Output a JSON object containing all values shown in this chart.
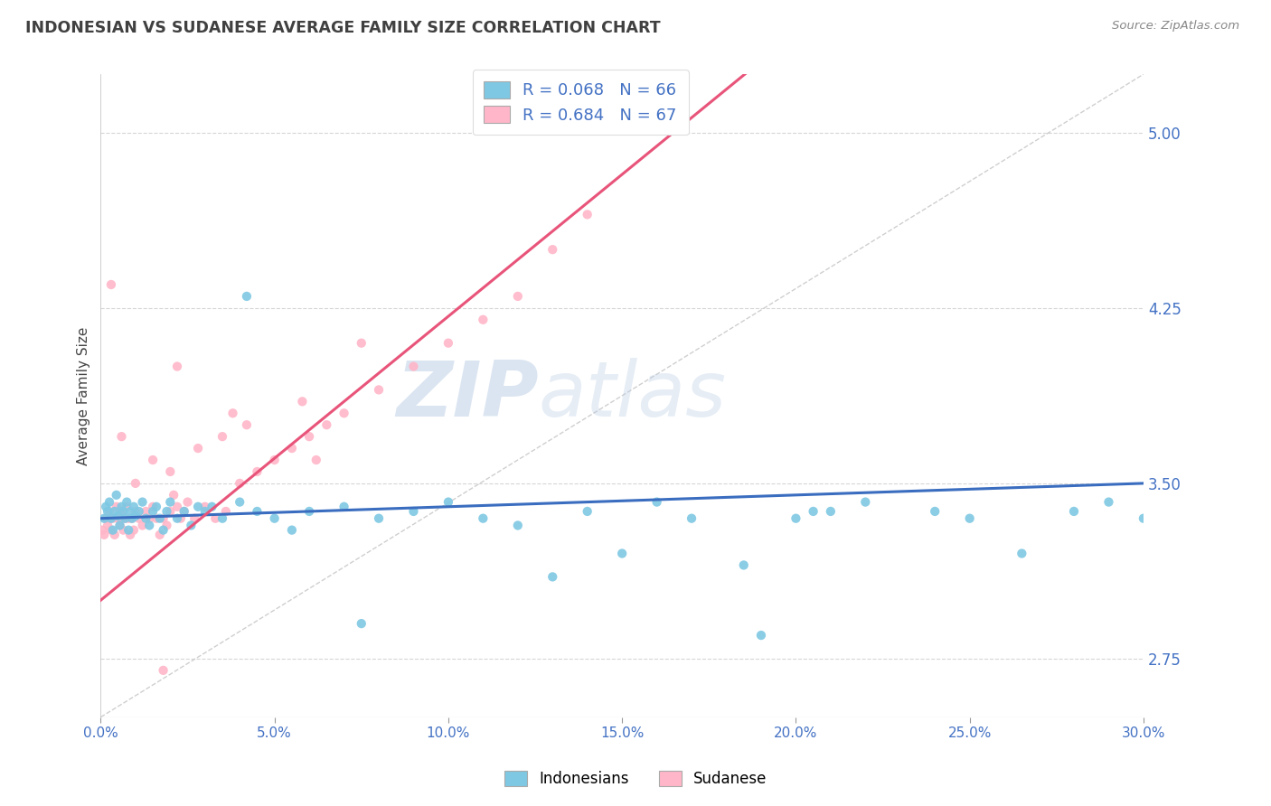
{
  "title": "INDONESIAN VS SUDANESE AVERAGE FAMILY SIZE CORRELATION CHART",
  "source_text": "Source: ZipAtlas.com",
  "ylabel": "Average Family Size",
  "xlim": [
    0.0,
    30.0
  ],
  "ylim": [
    2.5,
    5.25
  ],
  "yticks": [
    2.75,
    3.5,
    4.25,
    5.0
  ],
  "xticks": [
    0.0,
    5.0,
    10.0,
    15.0,
    20.0,
    25.0,
    30.0
  ],
  "xtick_labels": [
    "0.0%",
    "5.0%",
    "10.0%",
    "15.0%",
    "20.0%",
    "25.0%",
    "30.0%"
  ],
  "indonesian_color": "#7ec8e3",
  "sudanese_color": "#ffb6c8",
  "trend_color_blue": "#3a6dbf",
  "trend_color_pink": "#e8547a",
  "bg_color": "#ffffff",
  "grid_color": "#cccccc",
  "R_indo": 0.068,
  "N_indo": 66,
  "R_sudan": 0.684,
  "N_sudan": 67,
  "legend_label_indo": "Indonesians",
  "legend_label_sudan": "Sudanese",
  "axis_label_color": "#4472c4",
  "title_color": "#404040",
  "watermark_zip": "ZIP",
  "watermark_atlas": "atlas",
  "indo_x": [
    0.1,
    0.15,
    0.2,
    0.25,
    0.3,
    0.35,
    0.4,
    0.45,
    0.5,
    0.55,
    0.6,
    0.65,
    0.7,
    0.75,
    0.8,
    0.85,
    0.9,
    0.95,
    1.0,
    1.1,
    1.2,
    1.3,
    1.4,
    1.5,
    1.6,
    1.7,
    1.8,
    1.9,
    2.0,
    2.2,
    2.4,
    2.6,
    2.8,
    3.0,
    3.5,
    4.0,
    4.5,
    5.0,
    5.5,
    6.0,
    7.0,
    8.0,
    9.0,
    10.0,
    11.0,
    12.0,
    13.0,
    14.0,
    15.0,
    16.0,
    17.0,
    18.5,
    20.0,
    21.0,
    22.0,
    24.0,
    25.0,
    26.5,
    28.0,
    29.0,
    30.0,
    7.5,
    19.0,
    20.5,
    3.2,
    4.2
  ],
  "indo_y": [
    3.35,
    3.4,
    3.38,
    3.42,
    3.35,
    3.3,
    3.38,
    3.45,
    3.36,
    3.32,
    3.4,
    3.38,
    3.35,
    3.42,
    3.3,
    3.38,
    3.35,
    3.4,
    3.36,
    3.38,
    3.42,
    3.35,
    3.32,
    3.38,
    3.4,
    3.35,
    3.3,
    3.38,
    3.42,
    3.35,
    3.38,
    3.32,
    3.4,
    3.38,
    3.35,
    3.42,
    3.38,
    3.35,
    3.3,
    3.38,
    3.4,
    3.35,
    3.38,
    3.42,
    3.35,
    3.32,
    3.1,
    3.38,
    3.2,
    3.42,
    3.35,
    3.15,
    3.35,
    3.38,
    3.42,
    3.38,
    3.35,
    3.2,
    3.38,
    3.42,
    3.35,
    2.9,
    2.85,
    3.38,
    3.4,
    4.3
  ],
  "sudan_x": [
    0.05,
    0.1,
    0.15,
    0.2,
    0.25,
    0.3,
    0.35,
    0.4,
    0.45,
    0.5,
    0.55,
    0.6,
    0.65,
    0.7,
    0.75,
    0.8,
    0.85,
    0.9,
    0.95,
    1.0,
    1.1,
    1.2,
    1.3,
    1.4,
    1.5,
    1.6,
    1.7,
    1.8,
    1.9,
    2.0,
    2.1,
    2.2,
    2.3,
    2.4,
    2.5,
    2.7,
    3.0,
    3.3,
    3.6,
    4.0,
    4.5,
    5.0,
    5.5,
    6.0,
    6.5,
    7.0,
    8.0,
    9.0,
    10.0,
    11.0,
    12.0,
    13.0,
    14.0,
    0.3,
    0.6,
    1.0,
    1.5,
    2.0,
    2.8,
    3.5,
    4.2,
    5.8,
    7.5,
    1.8,
    2.2,
    3.8,
    6.2
  ],
  "sudan_y": [
    3.3,
    3.28,
    3.35,
    3.32,
    3.38,
    3.3,
    3.35,
    3.28,
    3.4,
    3.35,
    3.32,
    3.38,
    3.3,
    3.35,
    3.4,
    3.35,
    3.28,
    3.35,
    3.3,
    3.38,
    3.35,
    3.32,
    3.38,
    3.35,
    3.4,
    3.35,
    3.28,
    3.35,
    3.32,
    3.38,
    3.45,
    3.4,
    3.35,
    3.38,
    3.42,
    3.35,
    3.4,
    3.35,
    3.38,
    3.5,
    3.55,
    3.6,
    3.65,
    3.7,
    3.75,
    3.8,
    3.9,
    4.0,
    4.1,
    4.2,
    4.3,
    4.5,
    4.65,
    4.35,
    3.7,
    3.5,
    3.6,
    3.55,
    3.65,
    3.7,
    3.75,
    3.85,
    4.1,
    2.7,
    4.0,
    3.8,
    3.6
  ]
}
